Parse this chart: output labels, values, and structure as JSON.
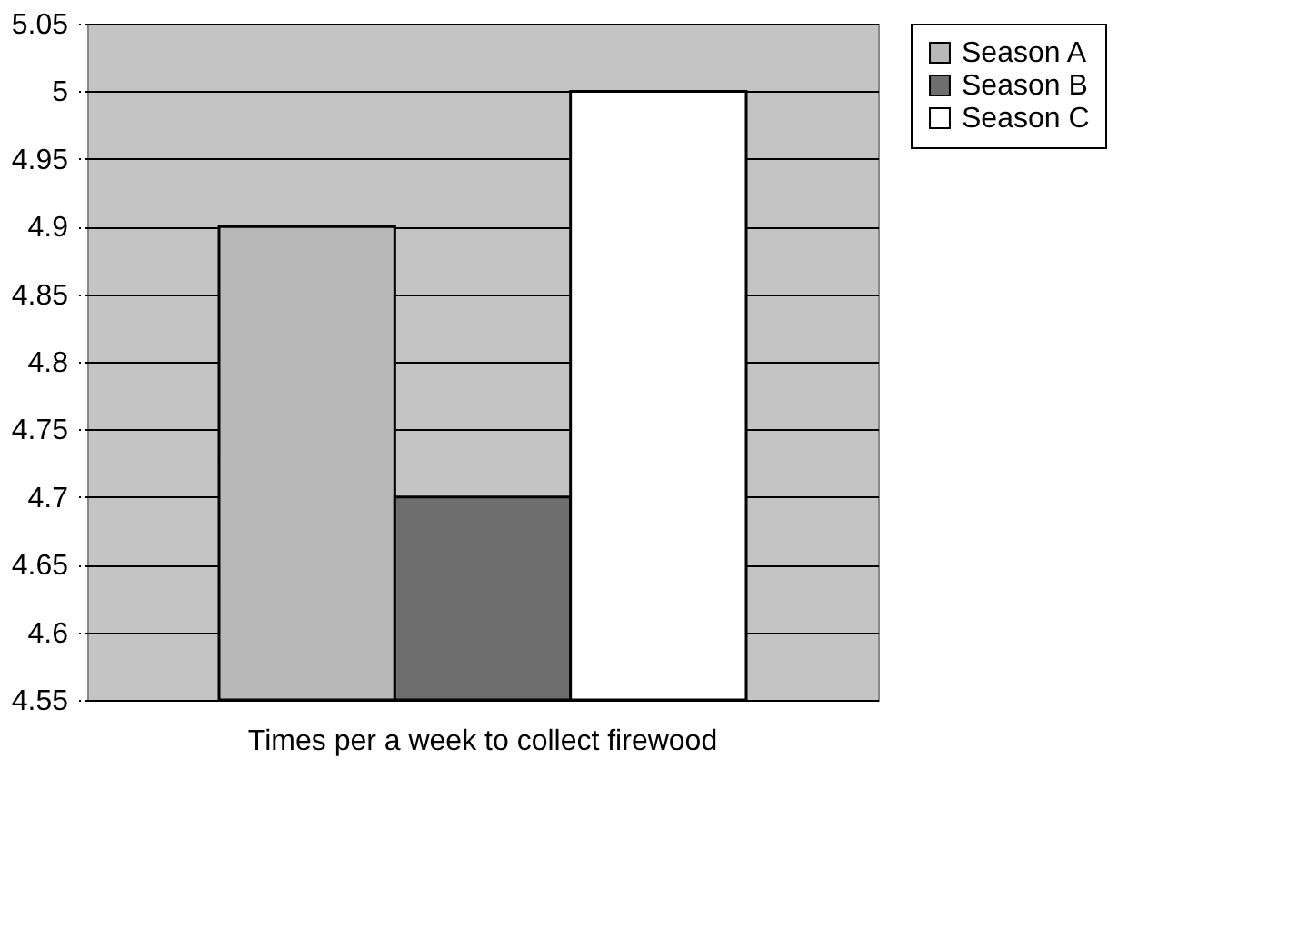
{
  "chart_data": {
    "type": "bar",
    "categories": [
      "Times per a week to collect firewood"
    ],
    "series": [
      {
        "name": "Season A",
        "color": "#b8b8b8",
        "values": [
          4.9
        ]
      },
      {
        "name": "Season B",
        "color": "#6e6e6e",
        "values": [
          4.7
        ]
      },
      {
        "name": "Season C",
        "color": "#ffffff",
        "values": [
          5.0
        ]
      }
    ],
    "ylim": [
      4.55,
      5.05
    ],
    "yticks": [
      4.55,
      4.6,
      4.65,
      4.7,
      4.75,
      4.8,
      4.85,
      4.9,
      4.95,
      5,
      5.05
    ],
    "grid": "y",
    "legend": "right"
  }
}
